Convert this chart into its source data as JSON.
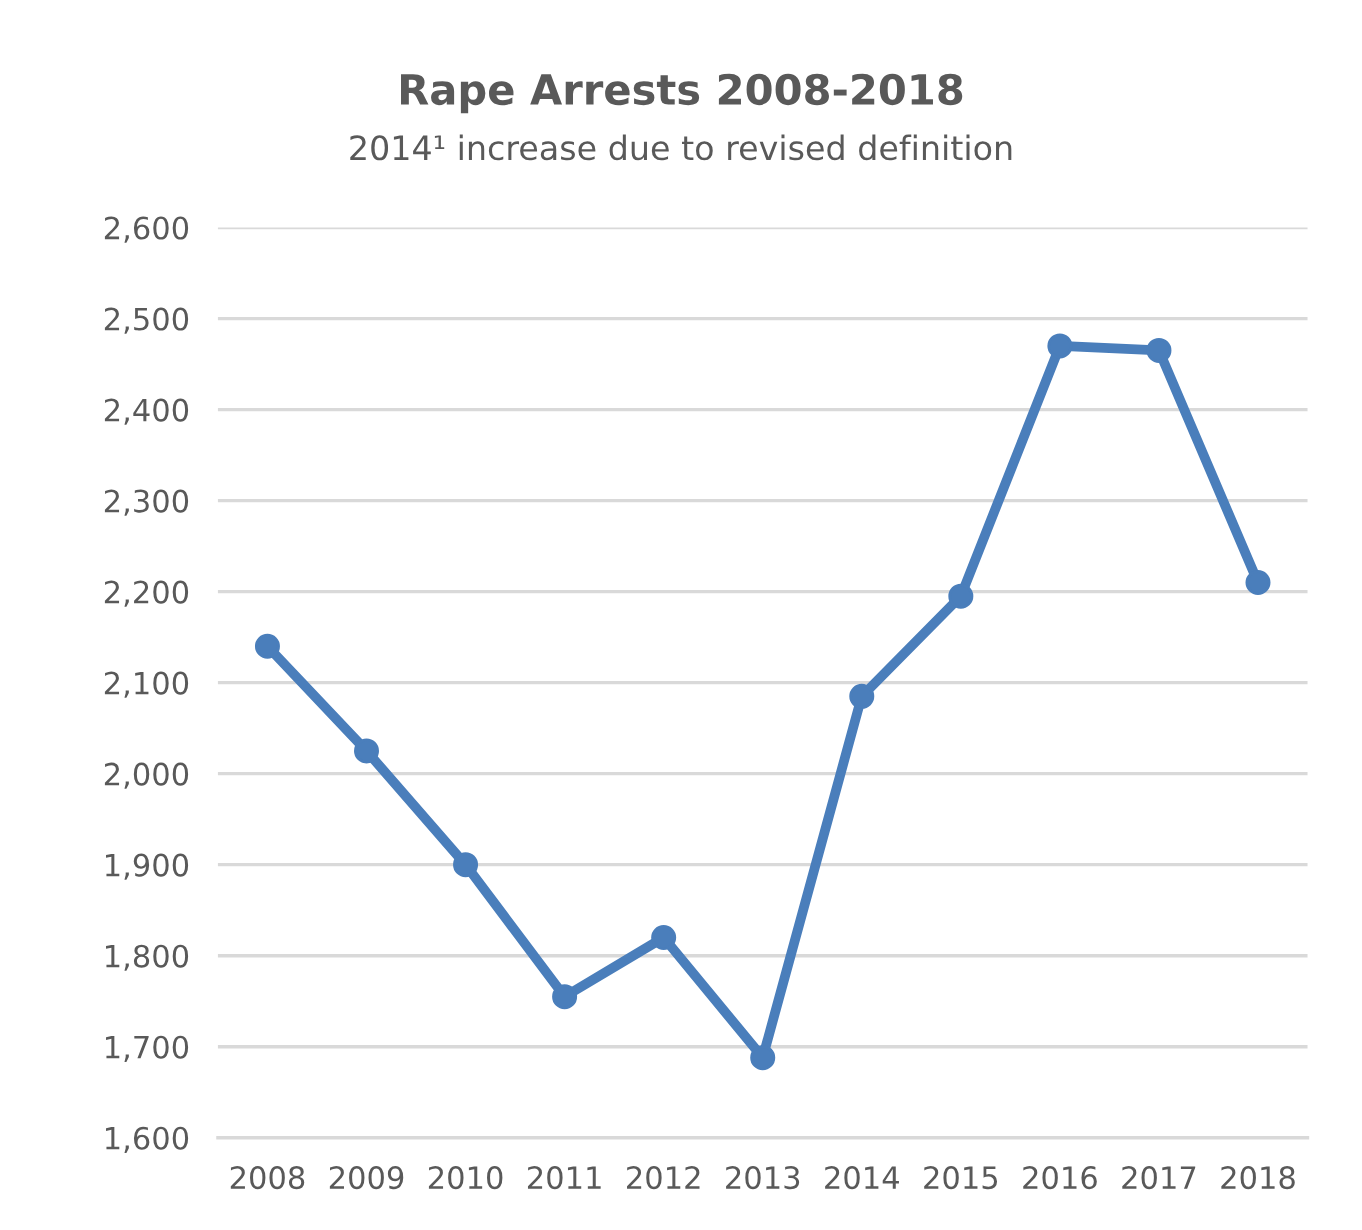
{
  "chart_data": {
    "type": "line",
    "title": "Rape Arrests 2008-2018",
    "subtitle": "2014¹ increase due to revised definition",
    "categories": [
      "2008",
      "2009",
      "2010",
      "2011",
      "2012",
      "2013",
      "2014",
      "2015",
      "2016",
      "2017",
      "2018"
    ],
    "series": [
      {
        "color": "#4a7ebb",
        "values": [
          2140,
          2025,
          1900,
          1755,
          1820,
          1688,
          2085,
          2195,
          2470,
          2465,
          2210
        ]
      }
    ],
    "ylim": [
      1600,
      2600
    ],
    "yticks": [
      {
        "value": 1600,
        "label": "1,600"
      },
      {
        "value": 1700,
        "label": "1,700"
      },
      {
        "value": 1800,
        "label": "1,800"
      },
      {
        "value": 1900,
        "label": "1,900"
      },
      {
        "value": 2000,
        "label": "2,000"
      },
      {
        "value": 2100,
        "label": "2,100"
      },
      {
        "value": 2200,
        "label": "2,200"
      },
      {
        "value": 2300,
        "label": "2,300"
      },
      {
        "value": 2400,
        "label": "2,400"
      },
      {
        "value": 2500,
        "label": "2,500"
      },
      {
        "value": 2600,
        "label": "2,600"
      }
    ],
    "grid": "y",
    "marker": "circle",
    "line_style": "solid"
  }
}
